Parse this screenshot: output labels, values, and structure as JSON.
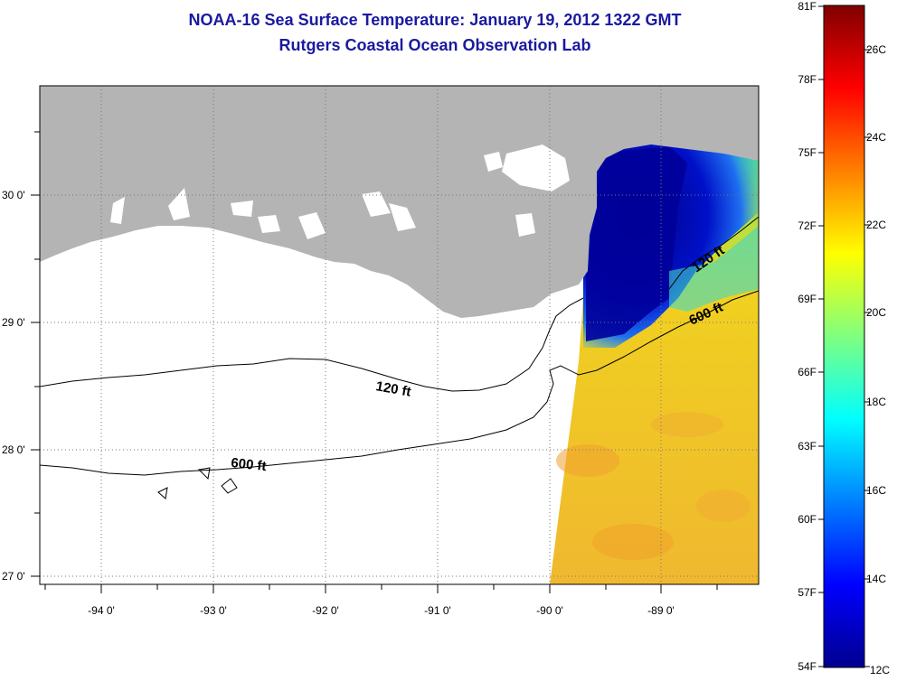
{
  "header": {
    "title": "NOAA-16 Sea Surface Temperature:  January 19, 2012 1322 GMT",
    "subtitle": "Rutgers Coastal Ocean Observation Lab"
  },
  "map": {
    "x_ticks": [
      "-94 0'",
      "-93 0'",
      "-92 0'",
      "-91 0'",
      "-90 0'",
      "-89 0'"
    ],
    "y_ticks": [
      "30 0'",
      "29 0'",
      "28 0'",
      "27 0'"
    ],
    "contours": {
      "shelf_120": "120 ft",
      "slope_600": "600 ft",
      "shelf_120_east": "120 ft",
      "slope_600_east": "600 ft"
    },
    "colors": {
      "land": "#b4b4b4",
      "cold": "#00008f",
      "warm": "#e8c820"
    }
  },
  "colorbar": {
    "f_labels": [
      "81F",
      "78F",
      "75F",
      "72F",
      "69F",
      "66F",
      "63F",
      "60F",
      "57F",
      "54F"
    ],
    "c_labels": [
      "26C",
      "24C",
      "22C",
      "20C",
      "18C",
      "16C",
      "14C",
      "12C"
    ],
    "range_c": [
      12,
      27.2
    ]
  }
}
